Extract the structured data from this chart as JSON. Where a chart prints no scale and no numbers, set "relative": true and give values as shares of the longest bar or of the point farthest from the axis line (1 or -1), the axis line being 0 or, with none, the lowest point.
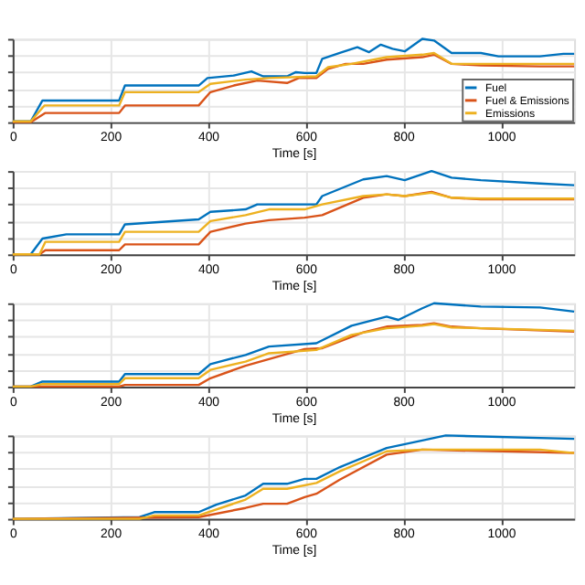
{
  "chart_data": [
    {
      "type": "line",
      "xlabel": "Time [s]",
      "relative": true,
      "xlim": [
        0,
        1150
      ],
      "xticks": [
        0,
        200,
        400,
        600,
        800,
        1000
      ],
      "grid": true,
      "tick_labels": "x",
      "legend": "bottom right",
      "series": [
        {
          "name": "Fuel",
          "color": "#0072bd",
          "x": [
            0,
            37,
            61,
            218,
            230,
            381,
            399,
            453,
            489,
            513,
            562,
            580,
            598,
            622,
            634,
            670,
            706,
            730,
            754,
            778,
            803,
            839,
            863,
            899,
            959,
            995,
            1080,
            1128,
            1150
          ],
          "values": [
            0.01,
            0.01,
            0.26,
            0.26,
            0.44,
            0.44,
            0.53,
            0.56,
            0.61,
            0.55,
            0.55,
            0.6,
            0.59,
            0.59,
            0.76,
            0.83,
            0.9,
            0.84,
            0.93,
            0.88,
            0.85,
            1,
            0.98,
            0.83,
            0.83,
            0.79,
            0.79,
            0.82,
            0.82
          ]
        },
        {
          "name": "Fuel & Emissions",
          "color": "#d95319",
          "x": [
            0,
            37,
            67,
            218,
            230,
            381,
            405,
            453,
            501,
            562,
            586,
            622,
            646,
            682,
            718,
            766,
            839,
            863,
            899,
            959,
            1080,
            1150
          ],
          "values": [
            0,
            0,
            0.11,
            0.11,
            0.2,
            0.2,
            0.36,
            0.44,
            0.5,
            0.47,
            0.53,
            0.53,
            0.64,
            0.7,
            0.7,
            0.75,
            0.78,
            0.81,
            0.7,
            0.68,
            0.67,
            0.67
          ]
        },
        {
          "name": "Emissions",
          "color": "#edb120",
          "x": [
            0,
            37,
            65,
            218,
            230,
            381,
            405,
            477,
            525,
            622,
            646,
            694,
            766,
            839,
            863,
            899,
            959,
            1150
          ],
          "values": [
            0.01,
            0.01,
            0.2,
            0.2,
            0.36,
            0.36,
            0.46,
            0.51,
            0.53,
            0.55,
            0.66,
            0.7,
            0.78,
            0.81,
            0.83,
            0.7,
            0.7,
            0.7
          ]
        }
      ]
    },
    {
      "type": "line",
      "xlabel": "Time [s]",
      "relative": true,
      "xlim": [
        0,
        1150
      ],
      "xticks": [
        0,
        200,
        400,
        600,
        800,
        1000
      ],
      "grid": true,
      "tick_labels": "x",
      "series": [
        {
          "color": "#0072bd",
          "x": [
            0,
            37,
            61,
            110,
            218,
            230,
            381,
            405,
            477,
            501,
            622,
            634,
            718,
            766,
            803,
            858,
            899,
            959,
            1080,
            1150
          ],
          "values": [
            0,
            0,
            0.19,
            0.24,
            0.24,
            0.36,
            0.42,
            0.51,
            0.54,
            0.6,
            0.6,
            0.7,
            0.9,
            0.94,
            0.89,
            1,
            0.92,
            0.89,
            0.85,
            0.83
          ]
        },
        {
          "color": "#d95319",
          "x": [
            0,
            55,
            67,
            218,
            230,
            381,
            405,
            477,
            525,
            598,
            634,
            718,
            766,
            803,
            858,
            899,
            959,
            1150
          ],
          "values": [
            0,
            0,
            0.05,
            0.05,
            0.12,
            0.12,
            0.27,
            0.37,
            0.41,
            0.44,
            0.47,
            0.68,
            0.72,
            0.7,
            0.75,
            0.68,
            0.66,
            0.66
          ]
        },
        {
          "color": "#edb120",
          "x": [
            0,
            55,
            67,
            218,
            230,
            381,
            405,
            477,
            525,
            598,
            634,
            718,
            766,
            803,
            858,
            899,
            959,
            1150
          ],
          "values": [
            0,
            0,
            0.15,
            0.15,
            0.27,
            0.27,
            0.4,
            0.47,
            0.54,
            0.54,
            0.6,
            0.7,
            0.72,
            0.7,
            0.74,
            0.68,
            0.67,
            0.67
          ]
        }
      ]
    },
    {
      "type": "line",
      "xlabel": "Time [s]",
      "relative": true,
      "xlim": [
        0,
        1150
      ],
      "xticks": [
        0,
        200,
        400,
        600,
        800,
        1000
      ],
      "grid": true,
      "tick_labels": "x",
      "series": [
        {
          "color": "#0072bd",
          "x": [
            0,
            37,
            61,
            218,
            230,
            381,
            405,
            477,
            525,
            622,
            694,
            766,
            790,
            839,
            863,
            959,
            1080,
            1150
          ],
          "values": [
            0,
            0,
            0.06,
            0.06,
            0.15,
            0.15,
            0.27,
            0.38,
            0.48,
            0.52,
            0.73,
            0.84,
            0.8,
            0.94,
            1,
            0.96,
            0.95,
            0.9
          ]
        },
        {
          "color": "#d95319",
          "x": [
            0,
            218,
            230,
            381,
            405,
            477,
            525,
            598,
            634,
            718,
            766,
            839,
            863,
            899,
            959,
            1150
          ],
          "values": [
            0,
            0,
            0.02,
            0.02,
            0.1,
            0.25,
            0.33,
            0.45,
            0.46,
            0.65,
            0.72,
            0.74,
            0.76,
            0.72,
            0.7,
            0.66
          ]
        },
        {
          "color": "#edb120",
          "x": [
            0,
            37,
            61,
            218,
            230,
            381,
            405,
            477,
            525,
            622,
            694,
            766,
            839,
            863,
            899,
            1150
          ],
          "values": [
            0,
            0,
            0.03,
            0.03,
            0.1,
            0.1,
            0.2,
            0.3,
            0.4,
            0.44,
            0.62,
            0.7,
            0.73,
            0.75,
            0.71,
            0.67
          ]
        }
      ]
    },
    {
      "type": "line",
      "xlabel": "Time [s]",
      "relative": true,
      "xlim": [
        0,
        1150
      ],
      "xticks": [
        0,
        200,
        400,
        600,
        800,
        1000
      ],
      "grid": true,
      "tick_labels": "x",
      "series": [
        {
          "color": "#0072bd",
          "x": [
            0,
            260,
            290,
            381,
            417,
            477,
            513,
            562,
            598,
            622,
            670,
            766,
            839,
            887,
            1150
          ],
          "values": [
            0,
            0.02,
            0.08,
            0.08,
            0.17,
            0.28,
            0.42,
            0.42,
            0.48,
            0.48,
            0.62,
            0.85,
            0.94,
            1,
            0.96
          ]
        },
        {
          "color": "#d95319",
          "x": [
            0,
            381,
            477,
            513,
            562,
            598,
            622,
            670,
            766,
            839,
            1150
          ],
          "values": [
            0,
            0.02,
            0.13,
            0.18,
            0.18,
            0.26,
            0.3,
            0.47,
            0.77,
            0.83,
            0.79
          ]
        },
        {
          "color": "#edb120",
          "x": [
            0,
            260,
            290,
            381,
            477,
            513,
            562,
            622,
            670,
            766,
            839,
            1080,
            1150
          ],
          "values": [
            0,
            0,
            0.04,
            0.04,
            0.23,
            0.36,
            0.36,
            0.43,
            0.57,
            0.81,
            0.83,
            0.83,
            0.79
          ]
        }
      ]
    }
  ]
}
